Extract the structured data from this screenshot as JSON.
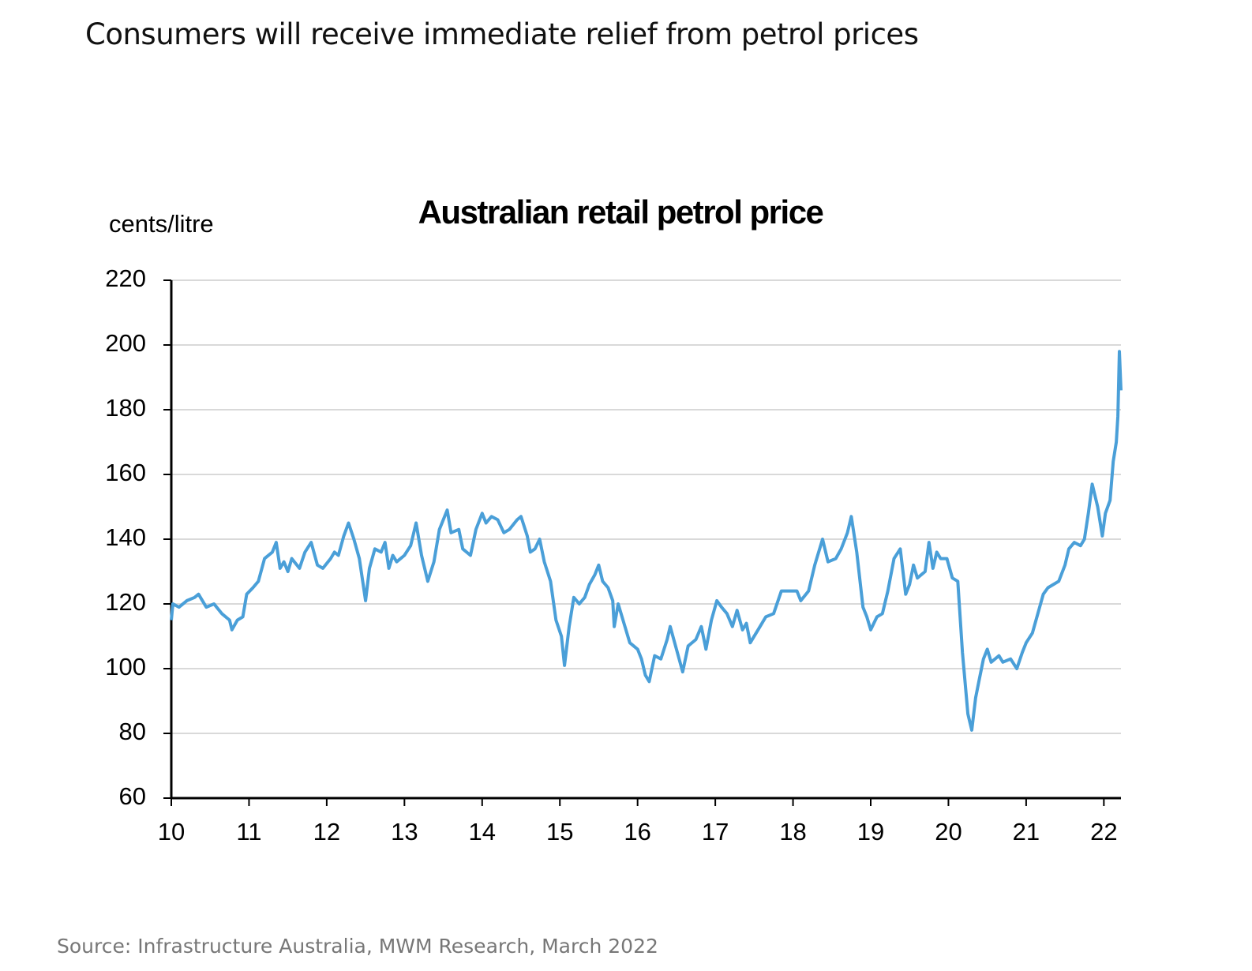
{
  "header": {
    "title": "Consumers will receive immediate relief from petrol prices"
  },
  "chart_data": {
    "type": "line",
    "title": "Australian retail petrol price",
    "y_label": "cents/litre",
    "xlim": [
      10,
      22.22
    ],
    "xticks": [
      10,
      11,
      12,
      13,
      14,
      15,
      16,
      17,
      18,
      19,
      20,
      21,
      22
    ],
    "ylim": [
      60,
      220
    ],
    "yticks": [
      60,
      80,
      100,
      120,
      140,
      160,
      180,
      200,
      220
    ],
    "grid": true,
    "series": [
      {
        "color": "#4a9fd8",
        "x": [
          10.0,
          10.02,
          10.1,
          10.2,
          10.3,
          10.35,
          10.45,
          10.55,
          10.65,
          10.75,
          10.78,
          10.85,
          10.92,
          10.97,
          11.05,
          11.12,
          11.2,
          11.3,
          11.35,
          11.4,
          11.45,
          11.5,
          11.55,
          11.65,
          11.72,
          11.8,
          11.88,
          11.95,
          12.05,
          12.1,
          12.15,
          12.22,
          12.28,
          12.35,
          12.42,
          12.5,
          12.55,
          12.62,
          12.7,
          12.75,
          12.8,
          12.85,
          12.9,
          13.0,
          13.08,
          13.15,
          13.22,
          13.3,
          13.38,
          13.45,
          13.55,
          13.6,
          13.7,
          13.75,
          13.85,
          13.92,
          14.0,
          14.05,
          14.12,
          14.2,
          14.28,
          14.35,
          14.45,
          14.5,
          14.58,
          14.62,
          14.68,
          14.74,
          14.8,
          14.88,
          14.95,
          15.02,
          15.06,
          15.12,
          15.18,
          15.25,
          15.32,
          15.38,
          15.45,
          15.5,
          15.55,
          15.62,
          15.68,
          15.7,
          15.75,
          15.8,
          15.9,
          16.0,
          16.05,
          16.1,
          16.15,
          16.22,
          16.3,
          16.38,
          16.42,
          16.5,
          16.58,
          16.65,
          16.75,
          16.82,
          16.88,
          16.95,
          17.02,
          17.08,
          17.15,
          17.22,
          17.28,
          17.35,
          17.4,
          17.45,
          17.55,
          17.65,
          17.75,
          17.85,
          17.95,
          18.05,
          18.1,
          18.2,
          18.28,
          18.38,
          18.45,
          18.55,
          18.62,
          18.7,
          18.75,
          18.82,
          18.9,
          18.95,
          19.0,
          19.08,
          19.15,
          19.22,
          19.3,
          19.38,
          19.45,
          19.5,
          19.55,
          19.6,
          19.7,
          19.75,
          19.8,
          19.85,
          19.9,
          19.98,
          20.05,
          20.12,
          20.18,
          20.25,
          20.3,
          20.35,
          20.4,
          20.45,
          20.5,
          20.55,
          20.65,
          20.7,
          20.8,
          20.88,
          20.95,
          21.0,
          21.08,
          21.15,
          21.22,
          21.28,
          21.35,
          21.42,
          21.5,
          21.55,
          21.62,
          21.7,
          21.75,
          21.8,
          21.85,
          21.92,
          21.98,
          22.02,
          22.08,
          22.12,
          22.16,
          22.18,
          22.2,
          22.22
        ],
        "values": [
          115,
          120,
          119,
          121,
          122,
          123,
          119,
          120,
          117,
          115,
          112,
          115,
          116,
          123,
          125,
          127,
          134,
          136,
          139,
          131,
          133,
          130,
          134,
          131,
          136,
          139,
          132,
          131,
          134,
          136,
          135,
          141,
          145,
          140,
          134,
          121,
          131,
          137,
          136,
          139,
          131,
          135,
          133,
          135,
          138,
          145,
          135,
          127,
          133,
          143,
          149,
          142,
          143,
          137,
          135,
          143,
          148,
          145,
          147,
          146,
          142,
          143,
          146,
          147,
          141,
          136,
          137,
          140,
          133,
          127,
          115,
          110,
          101,
          113,
          122,
          120,
          122,
          126,
          129,
          132,
          127,
          125,
          121,
          113,
          120,
          116,
          108,
          106,
          103,
          98,
          96,
          104,
          103,
          109,
          113,
          106,
          99,
          107,
          109,
          113,
          106,
          115,
          121,
          119,
          117,
          113,
          118,
          112,
          114,
          108,
          112,
          116,
          117,
          124,
          124,
          124,
          121,
          124,
          132,
          140,
          133,
          134,
          137,
          142,
          147,
          136,
          119,
          116,
          112,
          116,
          117,
          124,
          134,
          137,
          123,
          126,
          132,
          128,
          130,
          139,
          131,
          136,
          134,
          134,
          128,
          127,
          105,
          86,
          81,
          91,
          97,
          103,
          106,
          102,
          104,
          102,
          103,
          100,
          105,
          108,
          111,
          117,
          123,
          125,
          126,
          127,
          132,
          137,
          139,
          138,
          140,
          148,
          157,
          150,
          141,
          148,
          152,
          164,
          170,
          178,
          198,
          186
        ]
      }
    ]
  },
  "footer": {
    "source": "Source: Infrastructure Australia, MWM Research, March 2022"
  }
}
